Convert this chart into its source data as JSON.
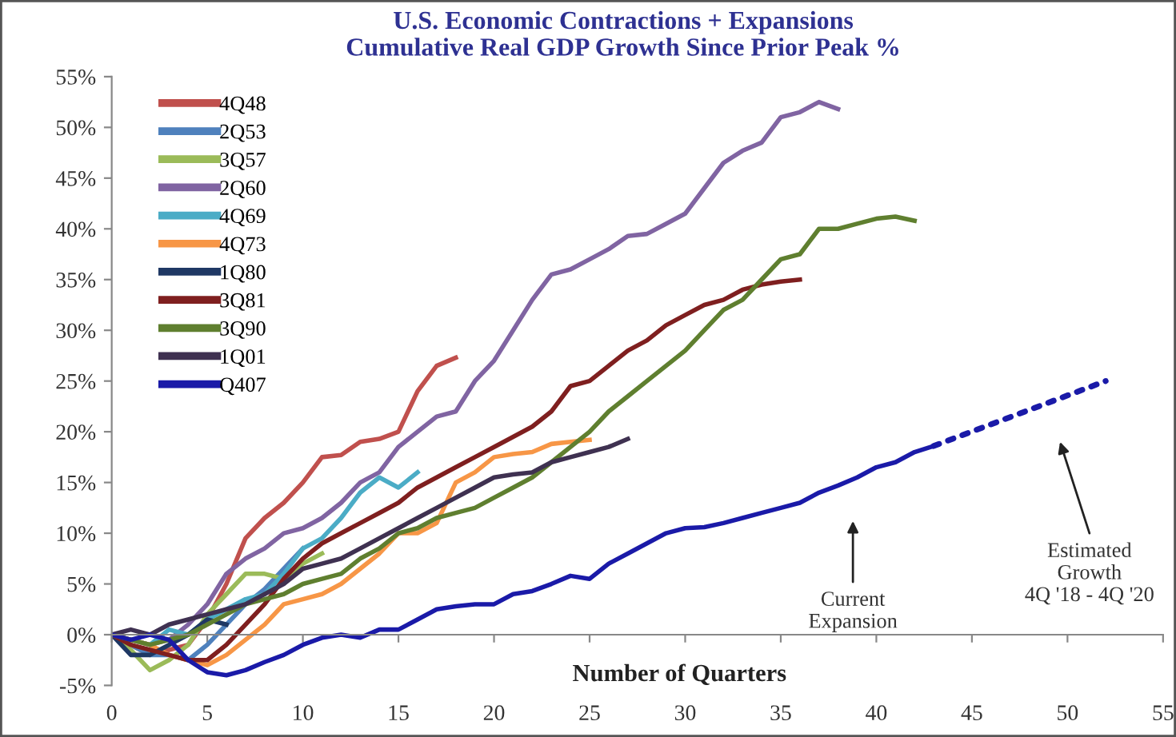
{
  "chart_data": {
    "type": "line",
    "title": "U.S. Economic Contractions + Expansions\nCumulative Real GDP Growth Since Prior Peak %",
    "xlabel": "Number of Quarters",
    "xlim": [
      0,
      55
    ],
    "xticks": [
      0,
      5,
      10,
      15,
      20,
      25,
      30,
      35,
      40,
      45,
      50,
      55
    ],
    "ylim": [
      -5,
      55
    ],
    "yticks": [
      {
        "value": -5,
        "label": "-5%"
      },
      {
        "value": 0,
        "label": "0%"
      },
      {
        "value": 5,
        "label": "5%"
      },
      {
        "value": 10,
        "label": "10%"
      },
      {
        "value": 15,
        "label": "15%"
      },
      {
        "value": 20,
        "label": "20%"
      },
      {
        "value": 25,
        "label": "25%"
      },
      {
        "value": 30,
        "label": "30%"
      },
      {
        "value": 35,
        "label": "35%"
      },
      {
        "value": 40,
        "label": "40%"
      },
      {
        "value": 45,
        "label": "45%"
      },
      {
        "value": 50,
        "label": "50%"
      },
      {
        "value": 55,
        "label": "55%"
      }
    ],
    "legend": "top left",
    "marker": "none",
    "series": [
      {
        "name": "4Q48",
        "color": "#c0504d",
        "x": [
          0,
          1,
          2,
          3,
          4,
          5,
          6,
          7,
          8,
          9,
          10,
          11,
          12,
          13,
          14,
          15,
          16,
          17,
          18
        ],
        "values": [
          0,
          -1,
          -2,
          -1.5,
          -1,
          1.5,
          5,
          9.5,
          11.5,
          13,
          15,
          17.5,
          17.7,
          19,
          19.3,
          20,
          24,
          26.5,
          27.3
        ]
      },
      {
        "name": "2Q53",
        "color": "#4f81bd",
        "x": [
          0,
          1,
          2,
          3,
          4,
          5,
          6,
          7,
          8,
          9,
          10
        ],
        "values": [
          0,
          -1,
          -2,
          -2,
          -2.5,
          -1,
          1,
          3,
          4.5,
          6.5,
          8.5
        ]
      },
      {
        "name": "3Q57",
        "color": "#9bbb59",
        "x": [
          0,
          1,
          2,
          3,
          4,
          5,
          6,
          7,
          8,
          9,
          10,
          11
        ],
        "values": [
          0,
          -1.5,
          -3.5,
          -2.5,
          -1,
          2,
          4,
          6,
          6,
          5.5,
          7,
          8
        ]
      },
      {
        "name": "2Q60",
        "color": "#8064a2",
        "x": [
          0,
          1,
          2,
          3,
          4,
          5,
          6,
          7,
          8,
          9,
          10,
          11,
          12,
          13,
          14,
          15,
          16,
          17,
          18,
          19,
          20,
          21,
          22,
          23,
          24,
          25,
          26,
          27,
          28,
          29,
          30,
          31,
          32,
          33,
          34,
          35,
          36,
          37,
          38
        ],
        "values": [
          0,
          -0.5,
          -1,
          -0.5,
          1,
          3,
          6,
          7.5,
          8.5,
          10,
          10.5,
          11.5,
          13,
          15,
          16,
          18.5,
          20,
          21.5,
          22,
          25,
          27,
          30,
          33,
          35.5,
          36,
          37,
          38,
          39.3,
          39.5,
          40.5,
          41.5,
          44,
          46.5,
          47.7,
          48.5,
          51,
          51.5,
          52.5,
          51.8
        ]
      },
      {
        "name": "4Q69",
        "color": "#4bacc6",
        "x": [
          0,
          1,
          2,
          3,
          4,
          5,
          6,
          7,
          8,
          9,
          10,
          11,
          12,
          13,
          14,
          15,
          16
        ],
        "values": [
          0,
          -0.5,
          -1,
          0.5,
          0,
          1.5,
          2.5,
          3.5,
          4,
          6,
          8.5,
          9.5,
          11.5,
          14,
          15.5,
          14.5,
          16
        ]
      },
      {
        "name": "4Q73",
        "color": "#f79646",
        "x": [
          0,
          1,
          2,
          3,
          4,
          5,
          6,
          7,
          8,
          9,
          10,
          11,
          12,
          13,
          14,
          15,
          16,
          17,
          18,
          19,
          20,
          21,
          22,
          23,
          24,
          25
        ],
        "values": [
          0,
          -0.5,
          -1,
          -2,
          -2.5,
          -3,
          -2,
          -0.5,
          1,
          3,
          3.5,
          4,
          5,
          6.5,
          8,
          10,
          10,
          11,
          15,
          16,
          17.5,
          17.8,
          18,
          18.8,
          19,
          19.2
        ]
      },
      {
        "name": "1Q80",
        "color": "#1f3864",
        "x": [
          0,
          1,
          2,
          3,
          4,
          5,
          6
        ],
        "values": [
          0,
          -2,
          -2,
          -1,
          0,
          1.5,
          1
        ]
      },
      {
        "name": "3Q81",
        "color": "#7f1f1f",
        "x": [
          0,
          1,
          2,
          3,
          4,
          5,
          6,
          7,
          8,
          9,
          10,
          11,
          12,
          13,
          14,
          15,
          16,
          17,
          18,
          19,
          20,
          21,
          22,
          23,
          24,
          25,
          26,
          27,
          28,
          29,
          30,
          31,
          32,
          33,
          34,
          35,
          36
        ],
        "values": [
          0,
          -1,
          -1.5,
          -2,
          -2.5,
          -2.5,
          -1,
          1,
          3,
          5.5,
          7.5,
          9,
          10,
          11,
          12,
          13,
          14.5,
          15.5,
          16.5,
          17.5,
          18.5,
          19.5,
          20.5,
          22,
          24.5,
          25,
          26.5,
          28,
          29,
          30.5,
          31.5,
          32.5,
          33,
          34,
          34.5,
          34.8,
          35
        ]
      },
      {
        "name": "3Q90",
        "color": "#5f7f2f",
        "x": [
          0,
          1,
          2,
          3,
          4,
          5,
          6,
          7,
          8,
          9,
          10,
          11,
          12,
          13,
          14,
          15,
          16,
          17,
          18,
          19,
          20,
          21,
          22,
          23,
          24,
          25,
          26,
          27,
          28,
          29,
          30,
          31,
          32,
          33,
          34,
          35,
          36,
          37,
          38,
          39,
          40,
          41,
          42
        ],
        "values": [
          0,
          -0.5,
          -1,
          -0.5,
          0,
          1,
          2,
          3,
          3.5,
          4,
          5,
          5.5,
          6,
          7.5,
          8.5,
          10,
          10.5,
          11.5,
          12,
          12.5,
          13.5,
          14.5,
          15.5,
          17,
          18.5,
          20,
          22,
          23.5,
          25,
          26.5,
          28,
          30,
          32,
          33,
          35,
          37,
          37.5,
          40,
          40,
          40.5,
          41,
          41.2,
          40.8
        ]
      },
      {
        "name": "1Q01",
        "color": "#3f3151",
        "x": [
          0,
          1,
          2,
          3,
          4,
          5,
          6,
          7,
          8,
          9,
          10,
          11,
          12,
          13,
          14,
          15,
          16,
          17,
          18,
          19,
          20,
          21,
          22,
          23,
          24,
          25,
          26,
          27
        ],
        "values": [
          0,
          0.5,
          0,
          1,
          1.5,
          2,
          2.5,
          3,
          4,
          5,
          6.5,
          7,
          7.5,
          8.5,
          9.5,
          10.5,
          11.5,
          12.5,
          13.5,
          14.5,
          15.5,
          15.8,
          16,
          17,
          17.5,
          18,
          18.5,
          19.3
        ]
      },
      {
        "name": "Q407",
        "color": "#1a1aa8",
        "x": [
          0,
          1,
          2,
          3,
          4,
          5,
          6,
          7,
          8,
          9,
          10,
          11,
          12,
          13,
          14,
          15,
          16,
          17,
          18,
          19,
          20,
          21,
          22,
          23,
          24,
          25,
          26,
          27,
          28,
          29,
          30,
          31,
          32,
          33,
          34,
          35,
          36,
          37,
          38,
          39,
          40,
          41,
          42,
          43
        ],
        "values": [
          0,
          -0.5,
          0,
          -0.5,
          -2.5,
          -3.7,
          -4,
          -3.5,
          -2.7,
          -2,
          -1,
          -0.3,
          0,
          -0.3,
          0.5,
          0.5,
          1.5,
          2.5,
          2.8,
          3,
          3,
          4,
          4.3,
          5,
          5.8,
          5.5,
          7,
          8,
          9,
          10,
          10.5,
          10.6,
          11,
          11.5,
          12,
          12.5,
          13,
          14,
          14.7,
          15.5,
          16.5,
          17,
          18,
          18.6
        ]
      },
      {
        "color": "#1a1aa8",
        "line_style": "dotted",
        "x": [
          43,
          52
        ],
        "values": [
          18.6,
          25
        ]
      }
    ],
    "annotations": [
      "Current\nExpansion",
      "Estimated\nGrowth\n4Q '18 - 4Q '20"
    ]
  }
}
